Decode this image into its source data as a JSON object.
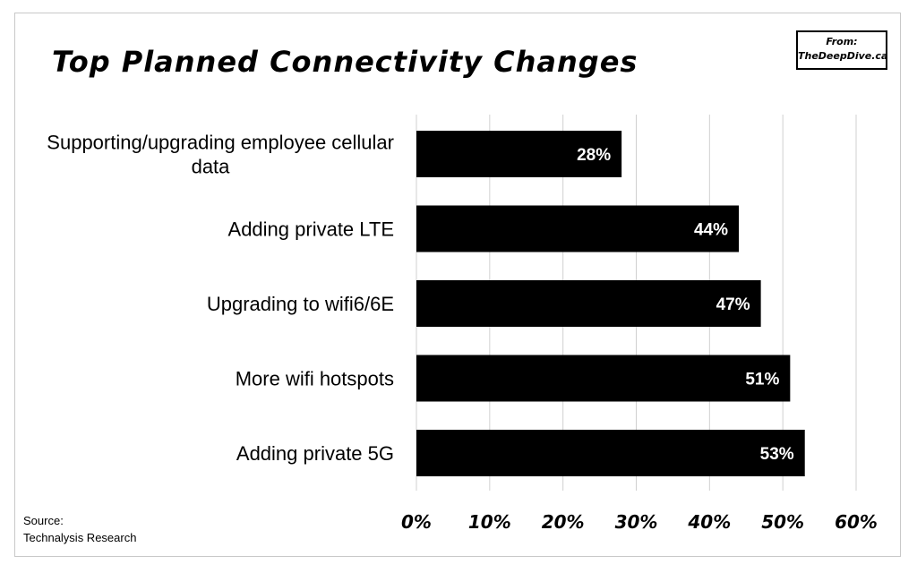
{
  "credit": {
    "line1": "From:",
    "line2": "TheDeepDive.ca"
  },
  "source": {
    "line1": "Source:",
    "line2": "Technalysis Research"
  },
  "colors": {
    "bar": "#000000",
    "grid": "#d0d0d0",
    "data_label": "#ffffff"
  },
  "chart_data": {
    "type": "bar",
    "orientation": "horizontal",
    "title": "Top Planned Connectivity Changes",
    "categories": [
      [
        "Supporting/upgrading employee cellular",
        "data"
      ],
      [
        "Adding private LTE"
      ],
      [
        "Upgrading to wifi6/6E"
      ],
      [
        "More wifi hotspots"
      ],
      [
        "Adding private 5G"
      ]
    ],
    "values": [
      28,
      44,
      47,
      51,
      53
    ],
    "data_labels": [
      "28%",
      "44%",
      "47%",
      "51%",
      "53%"
    ],
    "xlim": [
      0,
      60
    ],
    "ticks": [
      0,
      10,
      20,
      30,
      40,
      50,
      60
    ],
    "tick_labels": [
      "0%",
      "10%",
      "20%",
      "30%",
      "40%",
      "50%",
      "60%"
    ],
    "grid": true,
    "legend": "none"
  }
}
